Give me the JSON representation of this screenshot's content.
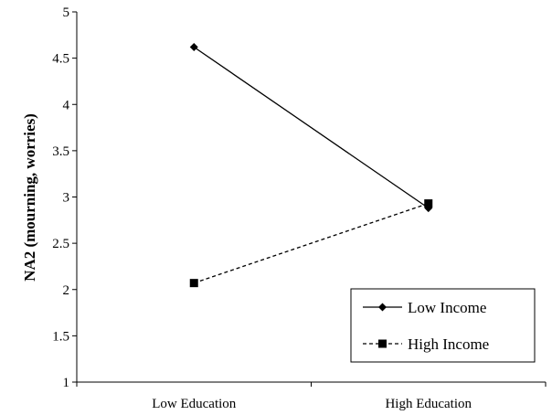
{
  "chart_data": {
    "type": "line",
    "title": "",
    "xlabel": "",
    "ylabel": "NA2 (mourning, worries)",
    "categories": [
      "Low Education",
      "High Education"
    ],
    "ylim": [
      1,
      5
    ],
    "yticks": [
      "1",
      "1.5",
      "2",
      "2.5",
      "3",
      "3.5",
      "4",
      "4.5",
      "5"
    ],
    "grid": false,
    "legend_position": "bottom-right",
    "series": [
      {
        "name": "Low Income",
        "values": [
          4.62,
          2.88
        ],
        "marker": "diamond",
        "line_style": "solid",
        "color": "#000000"
      },
      {
        "name": "High Income",
        "values": [
          2.07,
          2.93
        ],
        "marker": "square",
        "line_style": "dashed",
        "color": "#000000"
      }
    ]
  }
}
